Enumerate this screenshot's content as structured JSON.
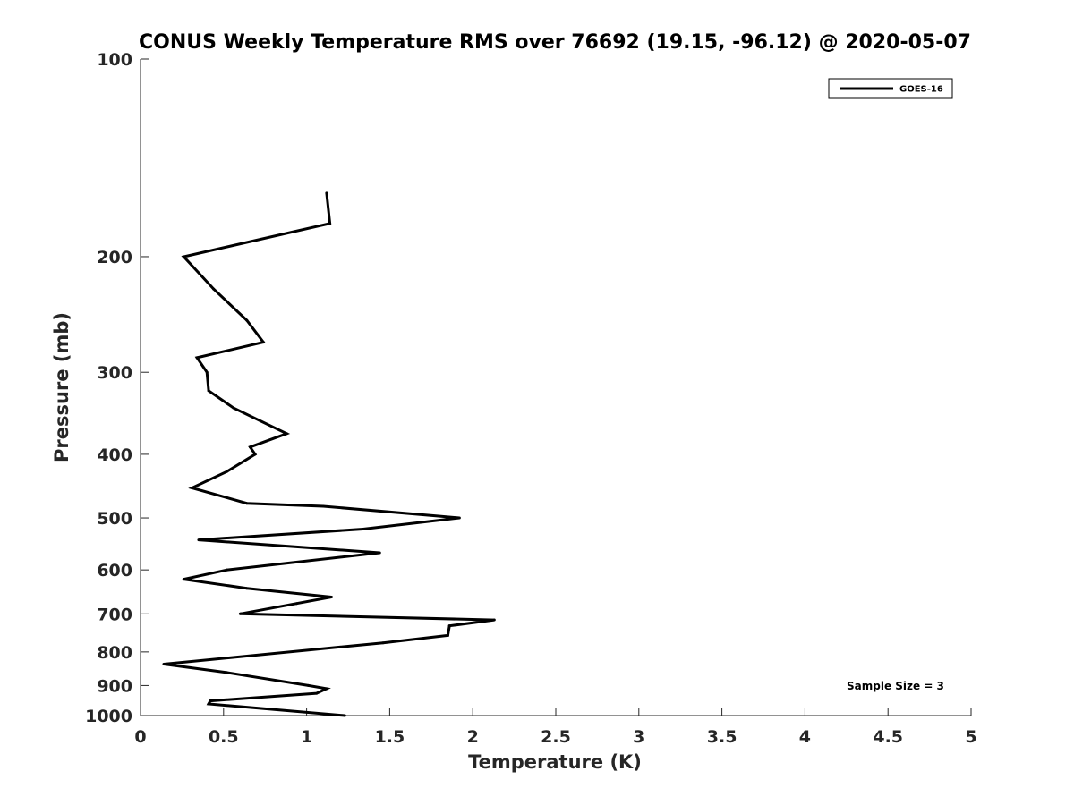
{
  "chart_data": {
    "type": "line",
    "title": "CONUS Weekly Temperature RMS over 76692 (19.15, -96.12) @ 2020-05-07",
    "xlabel": "Temperature (K)",
    "ylabel": "Pressure (mb)",
    "xlim": [
      0,
      5
    ],
    "ylim": [
      100,
      1000
    ],
    "yscale": "log",
    "y_reversed": true,
    "grid": false,
    "legend_position": "top-right",
    "xticks": [
      0,
      0.5,
      1,
      1.5,
      2,
      2.5,
      3,
      3.5,
      4,
      4.5,
      5
    ],
    "xtick_labels": [
      "0",
      "0.5",
      "1",
      "1.5",
      "2",
      "2.5",
      "3",
      "3.5",
      "4",
      "4.5",
      "5"
    ],
    "yticks": [
      100,
      200,
      300,
      400,
      500,
      600,
      700,
      800,
      900,
      1000
    ],
    "ytick_labels": [
      "100",
      "200",
      "300",
      "400",
      "500",
      "600",
      "700",
      "800",
      "900",
      "1000"
    ],
    "series": [
      {
        "name": "GOES-16",
        "color": "#000000",
        "points": [
          [
            1.12,
            160
          ],
          [
            1.14,
            178
          ],
          [
            0.26,
            200
          ],
          [
            0.44,
            224
          ],
          [
            0.64,
            250
          ],
          [
            0.74,
            270
          ],
          [
            0.34,
            285
          ],
          [
            0.4,
            300
          ],
          [
            0.41,
            320
          ],
          [
            0.56,
            340
          ],
          [
            0.88,
            372
          ],
          [
            0.66,
            390
          ],
          [
            0.69,
            400
          ],
          [
            0.52,
            425
          ],
          [
            0.31,
            450
          ],
          [
            0.64,
            475
          ],
          [
            1.1,
            480
          ],
          [
            1.92,
            500
          ],
          [
            1.34,
            520
          ],
          [
            0.35,
            540
          ],
          [
            1.44,
            565
          ],
          [
            0.52,
            600
          ],
          [
            0.26,
            620
          ],
          [
            0.64,
            640
          ],
          [
            1.15,
            660
          ],
          [
            0.94,
            675
          ],
          [
            0.6,
            700
          ],
          [
            2.13,
            715
          ],
          [
            1.86,
            730
          ],
          [
            1.85,
            755
          ],
          [
            1.46,
            775
          ],
          [
            0.14,
            835
          ],
          [
            0.52,
            860
          ],
          [
            1.01,
            900
          ],
          [
            1.12,
            910
          ],
          [
            1.06,
            925
          ],
          [
            0.42,
            950
          ],
          [
            0.41,
            960
          ],
          [
            1.23,
            1000
          ]
        ]
      }
    ],
    "annotations": [
      "Sample Size = 3"
    ]
  }
}
